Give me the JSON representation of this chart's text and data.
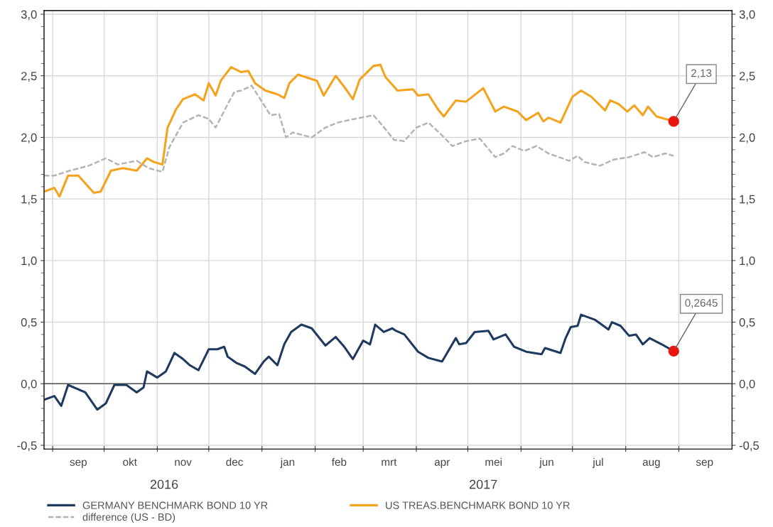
{
  "chart_data": {
    "type": "line",
    "xlim": [
      "2016-08-27",
      "2017-10-02"
    ],
    "xticks": [
      {
        "value": "2016-09-01",
        "label": null
      },
      {
        "value": "2016-10-01",
        "label": null
      },
      {
        "value": "2016-11-01",
        "label": null
      },
      {
        "value": "2016-12-01",
        "label": null
      },
      {
        "value": "2017-01-01",
        "label": null
      },
      {
        "value": "2017-02-01",
        "label": null
      },
      {
        "value": "2017-03-01",
        "label": null
      },
      {
        "value": "2017-04-01",
        "label": null
      },
      {
        "value": "2017-05-01",
        "label": null
      },
      {
        "value": "2017-06-01",
        "label": null
      },
      {
        "value": "2017-07-01",
        "label": null
      },
      {
        "value": "2017-08-01",
        "label": null
      },
      {
        "value": "2017-09-01",
        "label": null
      },
      {
        "value": "2016-09-16",
        "label": "sep"
      },
      {
        "value": "2016-10-16",
        "label": "okt"
      },
      {
        "value": "2016-11-16",
        "label": "nov"
      },
      {
        "value": "2016-12-16",
        "label": "dec"
      },
      {
        "value": "2017-01-16",
        "label": "jan"
      },
      {
        "value": "2017-02-15",
        "label": "feb"
      },
      {
        "value": "2017-03-16",
        "label": "mrt"
      },
      {
        "value": "2017-04-16",
        "label": "apr"
      },
      {
        "value": "2017-05-16",
        "label": "mei"
      },
      {
        "value": "2017-06-16",
        "label": "jun"
      },
      {
        "value": "2017-07-16",
        "label": "jul"
      },
      {
        "value": "2017-08-16",
        "label": "aug"
      },
      {
        "value": "2017-09-16",
        "label": "sep"
      }
    ],
    "x2lim": [
      "2016-08-27",
      "2017-10-02"
    ],
    "x2ticks": [
      {
        "value": "2016-11-05",
        "label": "2016"
      },
      {
        "value": "2017-05-10",
        "label": "2017"
      }
    ],
    "ylim": [
      -0.53,
      3.03
    ],
    "yticks": [
      {
        "value": -0.5,
        "label": "-0,5"
      },
      {
        "value": 0.0,
        "label": "0,0"
      },
      {
        "value": 0.5,
        "label": "0,5"
      },
      {
        "value": 1.0,
        "label": "1,0"
      },
      {
        "value": 1.5,
        "label": "1,5"
      },
      {
        "value": 2.0,
        "label": "2,0"
      },
      {
        "value": 2.5,
        "label": "2,5"
      },
      {
        "value": 3.0,
        "label": "3,0"
      }
    ],
    "y2lim": [
      -0.53,
      3.03
    ],
    "y2ticks": [
      {
        "value": -0.5,
        "label": "-0,5"
      },
      {
        "value": 0.0,
        "label": "0,0"
      },
      {
        "value": 0.5,
        "label": "0,5"
      },
      {
        "value": 1.0,
        "label": "1,0"
      },
      {
        "value": 1.5,
        "label": "1,5"
      },
      {
        "value": 2.0,
        "label": "2,0"
      },
      {
        "value": 2.5,
        "label": "2,5"
      },
      {
        "value": 3.0,
        "label": "3,0"
      }
    ],
    "grid": true,
    "legend": "bottom",
    "ref_lines": [
      {
        "axis": "y",
        "value": 0,
        "color": "#555555"
      }
    ],
    "annotations": [
      {
        "text": "2,13",
        "x": "2017-08-29",
        "y": 2.13
      },
      {
        "text": "0,2645",
        "x": "2017-08-29",
        "y": 0.2645
      }
    ],
    "series": [
      {
        "name": "GERMANY BENCHMARK BOND 10 YR",
        "color": "#1f3a5f",
        "line_style": "solid",
        "x": [
          "2016-08-27",
          "2016-09-02",
          "2016-09-06",
          "2016-09-10",
          "2016-09-20",
          "2016-09-27",
          "2016-10-02",
          "2016-10-07",
          "2016-10-14",
          "2016-10-20",
          "2016-10-24",
          "2016-10-26",
          "2016-11-01",
          "2016-11-06",
          "2016-11-11",
          "2016-11-16",
          "2016-11-20",
          "2016-11-25",
          "2016-12-01",
          "2016-12-06",
          "2016-12-10",
          "2016-12-12",
          "2016-12-17",
          "2016-12-22",
          "2016-12-28",
          "2017-01-02",
          "2017-01-05",
          "2017-01-10",
          "2017-01-14",
          "2017-01-18",
          "2017-01-24",
          "2017-01-30",
          "2017-02-07",
          "2017-02-13",
          "2017-02-18",
          "2017-02-23",
          "2017-03-01",
          "2017-03-05",
          "2017-03-08",
          "2017-03-13",
          "2017-03-18",
          "2017-03-20",
          "2017-03-25",
          "2017-04-02",
          "2017-04-08",
          "2017-04-16",
          "2017-04-24",
          "2017-04-26",
          "2017-04-30",
          "2017-05-05",
          "2017-05-13",
          "2017-05-16",
          "2017-05-23",
          "2017-05-28",
          "2017-06-04",
          "2017-06-13",
          "2017-06-15",
          "2017-06-24",
          "2017-06-27",
          "2017-06-30",
          "2017-07-04",
          "2017-07-06",
          "2017-07-14",
          "2017-07-22",
          "2017-07-24",
          "2017-07-29",
          "2017-08-03",
          "2017-08-07",
          "2017-08-11",
          "2017-08-15",
          "2017-08-22",
          "2017-08-29"
        ],
        "values": [
          -0.13,
          -0.1,
          -0.18,
          -0.01,
          -0.07,
          -0.21,
          -0.16,
          -0.01,
          -0.01,
          -0.07,
          -0.03,
          0.1,
          0.05,
          0.1,
          0.25,
          0.2,
          0.15,
          0.11,
          0.28,
          0.28,
          0.3,
          0.22,
          0.17,
          0.14,
          0.08,
          0.18,
          0.22,
          0.15,
          0.32,
          0.42,
          0.48,
          0.45,
          0.31,
          0.38,
          0.3,
          0.2,
          0.35,
          0.32,
          0.48,
          0.42,
          0.45,
          0.43,
          0.4,
          0.26,
          0.21,
          0.18,
          0.37,
          0.32,
          0.33,
          0.42,
          0.43,
          0.36,
          0.4,
          0.3,
          0.26,
          0.24,
          0.29,
          0.25,
          0.37,
          0.46,
          0.47,
          0.56,
          0.52,
          0.44,
          0.5,
          0.47,
          0.39,
          0.4,
          0.32,
          0.37,
          0.32,
          0.2645
        ]
      },
      {
        "name": "US TREAS.BENCHMARK BOND 10 YR",
        "color": "#f5a21d",
        "line_style": "solid",
        "x": [
          "2016-08-27",
          "2016-09-02",
          "2016-09-05",
          "2016-09-10",
          "2016-09-16",
          "2016-09-25",
          "2016-09-29",
          "2016-10-05",
          "2016-10-12",
          "2016-10-20",
          "2016-10-26",
          "2016-10-30",
          "2016-11-04",
          "2016-11-07",
          "2016-11-12",
          "2016-11-16",
          "2016-11-23",
          "2016-11-28",
          "2016-12-01",
          "2016-12-05",
          "2016-12-08",
          "2016-12-14",
          "2016-12-20",
          "2016-12-24",
          "2016-12-28",
          "2017-01-03",
          "2017-01-10",
          "2017-01-14",
          "2017-01-17",
          "2017-01-22",
          "2017-02-02",
          "2017-02-06",
          "2017-02-13",
          "2017-02-18",
          "2017-02-23",
          "2017-02-27",
          "2017-03-07",
          "2017-03-11",
          "2017-03-14",
          "2017-03-21",
          "2017-03-30",
          "2017-04-02",
          "2017-04-08",
          "2017-04-14",
          "2017-04-17",
          "2017-04-24",
          "2017-04-30",
          "2017-05-10",
          "2017-05-17",
          "2017-05-22",
          "2017-05-30",
          "2017-06-04",
          "2017-06-11",
          "2017-06-14",
          "2017-06-17",
          "2017-06-24",
          "2017-07-01",
          "2017-07-06",
          "2017-07-12",
          "2017-07-20",
          "2017-07-23",
          "2017-07-28",
          "2017-08-02",
          "2017-08-06",
          "2017-08-11",
          "2017-08-14",
          "2017-08-19",
          "2017-08-29"
        ],
        "values": [
          1.56,
          1.59,
          1.52,
          1.69,
          1.69,
          1.55,
          1.56,
          1.73,
          1.75,
          1.73,
          1.83,
          1.8,
          1.78,
          2.08,
          2.23,
          2.31,
          2.35,
          2.3,
          2.44,
          2.34,
          2.46,
          2.57,
          2.53,
          2.54,
          2.44,
          2.38,
          2.35,
          2.32,
          2.44,
          2.51,
          2.46,
          2.34,
          2.5,
          2.41,
          2.31,
          2.47,
          2.58,
          2.59,
          2.49,
          2.38,
          2.39,
          2.34,
          2.35,
          2.22,
          2.17,
          2.3,
          2.29,
          2.4,
          2.21,
          2.25,
          2.21,
          2.14,
          2.2,
          2.13,
          2.16,
          2.12,
          2.33,
          2.38,
          2.33,
          2.22,
          2.3,
          2.27,
          2.21,
          2.26,
          2.18,
          2.25,
          2.17,
          2.13
        ]
      },
      {
        "name": "difference (US - BD)",
        "color": "#b4b4b4",
        "line_style": "dashed",
        "x": [
          "2016-08-27",
          "2016-09-02",
          "2016-09-11",
          "2016-09-22",
          "2016-10-02",
          "2016-10-09",
          "2016-10-20",
          "2016-10-27",
          "2016-11-04",
          "2016-11-08",
          "2016-11-16",
          "2016-11-25",
          "2016-12-01",
          "2016-12-05",
          "2016-12-12",
          "2016-12-16",
          "2016-12-20",
          "2016-12-26",
          "2017-01-01",
          "2017-01-06",
          "2017-01-11",
          "2017-01-15",
          "2017-01-19",
          "2017-01-30",
          "2017-02-07",
          "2017-02-14",
          "2017-02-24",
          "2017-03-07",
          "2017-03-12",
          "2017-03-19",
          "2017-03-25",
          "2017-04-01",
          "2017-04-08",
          "2017-04-15",
          "2017-04-22",
          "2017-04-30",
          "2017-05-08",
          "2017-05-17",
          "2017-05-22",
          "2017-05-27",
          "2017-06-03",
          "2017-06-10",
          "2017-06-17",
          "2017-06-29",
          "2017-07-04",
          "2017-07-08",
          "2017-07-17",
          "2017-07-25",
          "2017-08-03",
          "2017-08-12",
          "2017-08-17",
          "2017-08-24",
          "2017-08-29"
        ],
        "values": [
          1.69,
          1.69,
          1.73,
          1.77,
          1.83,
          1.78,
          1.81,
          1.75,
          1.72,
          1.92,
          2.12,
          2.18,
          2.15,
          2.08,
          2.27,
          2.37,
          2.38,
          2.42,
          2.29,
          2.18,
          2.19,
          2.0,
          2.04,
          2.0,
          2.08,
          2.12,
          2.15,
          2.18,
          2.1,
          1.98,
          1.97,
          2.08,
          2.12,
          2.03,
          1.93,
          1.97,
          1.99,
          1.84,
          1.87,
          1.93,
          1.89,
          1.93,
          1.87,
          1.81,
          1.85,
          1.8,
          1.77,
          1.82,
          1.84,
          1.88,
          1.84,
          1.87,
          1.85
        ]
      }
    ]
  }
}
